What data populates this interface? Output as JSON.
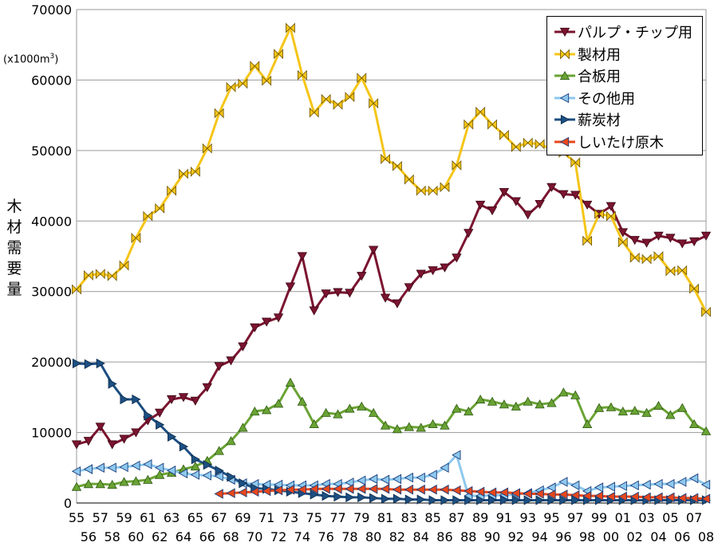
{
  "chart_data": {
    "type": "line",
    "ylabel": "木材需要量",
    "unit": "(x1000m",
    "unit_sup": "3",
    "unit_close": ")",
    "ylim": [
      0,
      70000
    ],
    "yticks": [
      0,
      10000,
      20000,
      30000,
      40000,
      50000,
      60000,
      70000
    ],
    "grid": true,
    "legend_position": "top-right",
    "xtick_labels_top": [
      "55",
      "57",
      "59",
      "61",
      "63",
      "65",
      "67",
      "69",
      "71",
      "73",
      "75",
      "77",
      "79",
      "81",
      "83",
      "85",
      "87",
      "89",
      "91",
      "93",
      "95",
      "97",
      "99",
      "01",
      "03",
      "05",
      "07"
    ],
    "xtick_labels_bottom": [
      "56",
      "58",
      "60",
      "62",
      "64",
      "66",
      "68",
      "70",
      "72",
      "74",
      "76",
      "78",
      "80",
      "82",
      "84",
      "86",
      "88",
      "90",
      "92",
      "94",
      "96",
      "98",
      "00",
      "02",
      "04",
      "06",
      "08"
    ],
    "x": [
      "1955",
      "1956",
      "1957",
      "1958",
      "1959",
      "1960",
      "1961",
      "1962",
      "1963",
      "1964",
      "1965",
      "1966",
      "1967",
      "1968",
      "1969",
      "1970",
      "1971",
      "1972",
      "1973",
      "1974",
      "1975",
      "1976",
      "1977",
      "1978",
      "1979",
      "1980",
      "1981",
      "1982",
      "1983",
      "1984",
      "1985",
      "1986",
      "1987",
      "1988",
      "1989",
      "1990",
      "1991",
      "1992",
      "1993",
      "1994",
      "1995",
      "1996",
      "1997",
      "1998",
      "1999",
      "2000",
      "2001",
      "2002",
      "2003",
      "2004",
      "2005",
      "2006",
      "2007",
      "2008"
    ],
    "series": [
      {
        "name": "パルプ・チップ用",
        "color": "#7b1430",
        "marker": "tri-down",
        "values": [
          8300,
          8800,
          10800,
          8300,
          9100,
          10000,
          11700,
          12800,
          14700,
          15000,
          14500,
          16400,
          19400,
          20200,
          22200,
          24900,
          25700,
          26300,
          30700,
          35000,
          27300,
          29700,
          29900,
          29800,
          32200,
          35900,
          29100,
          28300,
          30600,
          32500,
          33000,
          33400,
          34800,
          38300,
          42300,
          41500,
          44100,
          42800,
          40900,
          42400,
          44800,
          43800,
          43700,
          42300,
          41000,
          42100,
          38400,
          37300,
          36900,
          37900,
          37600,
          36800,
          37100,
          37900
        ]
      },
      {
        "name": "製材用",
        "color": "#f5c518",
        "marker": "bowtie",
        "values": [
          30300,
          32300,
          32500,
          32200,
          33700,
          37600,
          40700,
          41800,
          44300,
          46700,
          47000,
          50300,
          55300,
          59000,
          59500,
          62000,
          59900,
          63700,
          67400,
          60700,
          55400,
          57300,
          56500,
          57600,
          60300,
          56700,
          48800,
          47800,
          45900,
          44300,
          44300,
          44800,
          47900,
          53700,
          55500,
          53700,
          52200,
          50500,
          51100,
          50900,
          50200,
          49700,
          48300,
          37200,
          41000,
          40700,
          37000,
          34800,
          34600,
          35000,
          32900,
          33000,
          30400,
          27100
        ]
      },
      {
        "name": "合板用",
        "color": "#6aa334",
        "marker": "tri-up",
        "values": [
          2300,
          2700,
          2700,
          2600,
          3000,
          3100,
          3300,
          4000,
          4300,
          4800,
          5200,
          6000,
          7400,
          8800,
          10700,
          13000,
          13200,
          14100,
          17100,
          14400,
          11200,
          12800,
          12600,
          13400,
          13700,
          12800,
          11000,
          10500,
          10800,
          10700,
          11200,
          11000,
          13400,
          13000,
          14700,
          14400,
          14000,
          13700,
          14400,
          14000,
          14200,
          15700,
          15300,
          11200,
          13500,
          13600,
          13000,
          13100,
          12800,
          13800,
          12500,
          13500,
          11200,
          10200
        ]
      },
      {
        "name": "その他用",
        "color": "#8dc8ee",
        "marker": "tri-left",
        "values": [
          4500,
          4800,
          5000,
          5000,
          5100,
          5300,
          5500,
          5000,
          4600,
          4200,
          4000,
          3900,
          3800,
          3300,
          2800,
          2700,
          2600,
          2600,
          2500,
          2500,
          2500,
          2700,
          2700,
          2900,
          3200,
          3400,
          3300,
          3400,
          3600,
          3600,
          4000,
          5000,
          6800,
          1000,
          1000,
          1100,
          1100,
          1200,
          1400,
          1800,
          2200,
          3000,
          2500,
          1700,
          2200,
          2300,
          2400,
          2500,
          2600,
          2700,
          2700,
          3000,
          3500,
          2600
        ]
      },
      {
        "name": "薪炭材",
        "color": "#1d4f82",
        "marker": "tri-right",
        "values": [
          19800,
          19700,
          19800,
          16900,
          14700,
          14700,
          12400,
          11100,
          9400,
          8000,
          6200,
          5400,
          4600,
          3700,
          2800,
          2100,
          2000,
          1800,
          1600,
          1400,
          1200,
          1000,
          900,
          800,
          800,
          700,
          600,
          600,
          500,
          500,
          400,
          400,
          400,
          400,
          400,
          400,
          400,
          400,
          400,
          400,
          400,
          400,
          400,
          400,
          400,
          400,
          400,
          400,
          400,
          400,
          400,
          400,
          400,
          400
        ]
      },
      {
        "name": "しいたけ原木",
        "color": "#e8471b",
        "marker": "tri-left",
        "values": [
          null,
          null,
          null,
          null,
          null,
          null,
          null,
          null,
          null,
          null,
          null,
          null,
          1300,
          1400,
          1500,
          1600,
          1700,
          1800,
          1900,
          1900,
          2000,
          2000,
          2000,
          2000,
          2000,
          2000,
          2000,
          1900,
          1900,
          1900,
          1900,
          1900,
          1800,
          1700,
          1600,
          1500,
          1500,
          1400,
          1300,
          1300,
          1200,
          1200,
          1100,
          1000,
          1000,
          900,
          900,
          900,
          800,
          800,
          800,
          700,
          700,
          600
        ]
      }
    ]
  }
}
